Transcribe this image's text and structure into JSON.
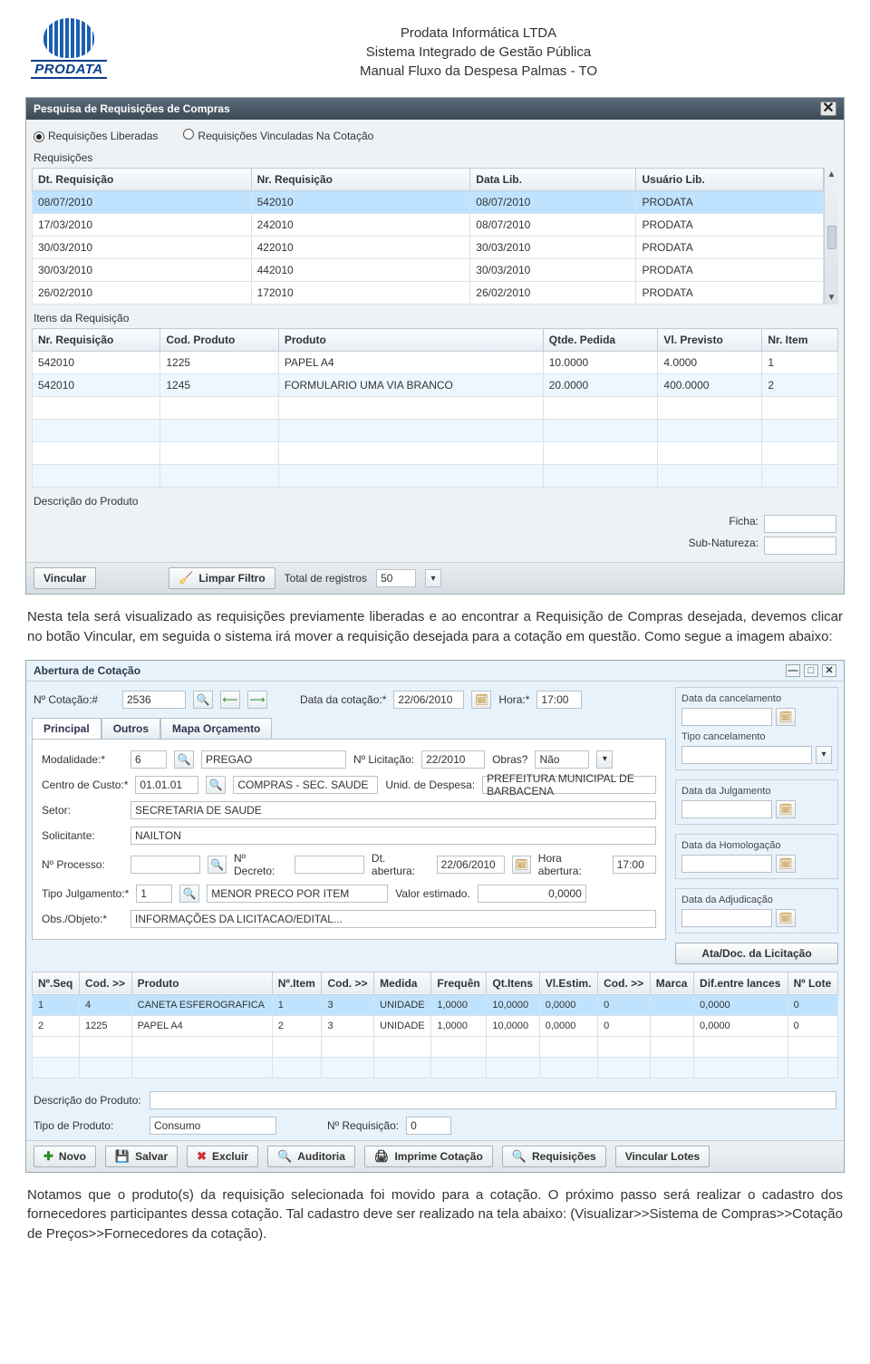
{
  "header": {
    "company": "Prodata Informática LTDA",
    "system": "Sistema Integrado de Gestão Pública",
    "manual": "Manual Fluxo da Despesa Palmas - TO",
    "logo_word": "PRODATA"
  },
  "win1": {
    "title": "Pesquisa de Requisições de Compras",
    "radio_released": "Requisições Liberadas",
    "radio_linked": "Requisições Vinculadas Na Cotação",
    "section_req": "Requisições",
    "cols_req": [
      "Dt. Requisição",
      "Nr. Requisição",
      "Data Lib.",
      "Usuário Lib."
    ],
    "rows_req": [
      [
        "08/07/2010",
        "542010",
        "08/07/2010",
        "PRODATA"
      ],
      [
        "17/03/2010",
        "242010",
        "08/07/2010",
        "PRODATA"
      ],
      [
        "30/03/2010",
        "422010",
        "30/03/2010",
        "PRODATA"
      ],
      [
        "30/03/2010",
        "442010",
        "30/03/2010",
        "PRODATA"
      ],
      [
        "26/02/2010",
        "172010",
        "26/02/2010",
        "PRODATA"
      ]
    ],
    "section_items": "Itens da Requisição",
    "cols_items": [
      "Nr. Requisição",
      "Cod. Produto",
      "Produto",
      "Qtde. Pedida",
      "Vl. Previsto",
      "Nr. Item"
    ],
    "rows_items": [
      [
        "542010",
        "1225",
        "PAPEL A4",
        "10.0000",
        "4.0000",
        "1"
      ],
      [
        "542010",
        "1245",
        "FORMULARIO UMA VIA BRANCO",
        "20.0000",
        "400.0000",
        "2"
      ]
    ],
    "desc_label": "Descrição do Produto",
    "ficha_label": "Ficha:",
    "subnat_label": "Sub-Natureza:",
    "btn_vincular": "Vincular",
    "btn_limpar": "Limpar Filtro",
    "total_label": "Total de registros",
    "total_value": "50"
  },
  "para1": "Nesta tela será visualizado as requisições previamente liberadas e ao encontrar a Requisição de Compras desejada, devemos clicar no botão Vincular, em seguida o sistema irá mover a requisição desejada para a cotação em questão. Como segue a imagem abaixo:",
  "win2": {
    "title": "Abertura de Cotação",
    "no_cotacao_lbl": "Nº Cotação:#",
    "no_cotacao": "2536",
    "data_cotacao_lbl": "Data da cotação:*",
    "data_cotacao": "22/06/2010",
    "hora_lbl": "Hora:*",
    "hora": "17:00",
    "tab_principal": "Principal",
    "tab_outros": "Outros",
    "tab_mapa": "Mapa Orçamento",
    "modalidade_lbl": "Modalidade:*",
    "modalidade_cod": "6",
    "modalidade_txt": "PREGAO",
    "no_licitacao_lbl": "Nº Licitação:",
    "no_licitacao": "22/2010",
    "obras_lbl": "Obras?",
    "obras_val": "Não",
    "centro_lbl": "Centro de Custo:*",
    "centro_cod": "01.01.01",
    "centro_txt": "COMPRAS - SEC. SAUDE",
    "unid_lbl": "Unid. de Despesa:",
    "unid_txt": "PREFEITURA MUNICIPAL DE BARBACENA",
    "setor_lbl": "Setor:",
    "setor_txt": "SECRETARIA DE SAUDE",
    "solicitante_lbl": "Solicitante:",
    "solicitante_txt": "NAILTON",
    "no_processo_lbl": "Nº Processo:",
    "no_decreto_lbl": "Nº Decreto:",
    "dt_abertura_lbl": "Dt. abertura:",
    "dt_abertura": "22/06/2010",
    "hora_abertura_lbl": "Hora abertura:",
    "hora_abertura": "17:00",
    "tipo_julg_lbl": "Tipo Julgamento:*",
    "tipo_julg_cod": "1",
    "tipo_julg_txt": "MENOR PRECO POR ITEM",
    "valor_est_lbl": "Valor estimado.",
    "valor_est": "0,0000",
    "obs_lbl": "Obs./Objeto:*",
    "obs_txt": "INFORMAÇÕES DA LICITACAO/EDITAL...",
    "side": {
      "cancel_lbl": "Data da cancelamento",
      "tipo_cancel_lbl": "Tipo cancelamento",
      "julg_lbl": "Data da Julgamento",
      "homolog_lbl": "Data da Homologação",
      "adjud_lbl": "Data da Adjudicação",
      "ata_btn": "Ata/Doc. da Licitação"
    },
    "grid_cols": [
      "Nº.Seq",
      "Cod. >>",
      "Produto",
      "Nº.Item",
      "Cod. >>",
      "Medida",
      "Frequên",
      "Qt.Itens",
      "Vl.Estim.",
      "Cod. >>",
      "Marca",
      "Dif.entre lances",
      "Nº Lote"
    ],
    "grid_rows": [
      [
        "1",
        "4",
        "CANETA ESFEROGRAFICA",
        "1",
        "3",
        "UNIDADE",
        "1,0000",
        "10,0000",
        "0,0000",
        "0",
        "",
        "0,0000",
        "0"
      ],
      [
        "2",
        "1225",
        "PAPEL A4",
        "2",
        "3",
        "UNIDADE",
        "1,0000",
        "10,0000",
        "0,0000",
        "0",
        "",
        "0,0000",
        "0"
      ]
    ],
    "desc_prod_lbl": "Descrição do Produto:",
    "tipo_prod_lbl": "Tipo de Produto:",
    "tipo_prod_val": "Consumo",
    "no_req_lbl": "Nº Requisição:",
    "no_req_val": "0",
    "btns": {
      "novo": "Novo",
      "salvar": "Salvar",
      "excluir": "Excluir",
      "auditoria": "Auditoria",
      "imprime": "Imprime Cotação",
      "requisicoes": "Requisições",
      "vincular_lotes": "Vincular Lotes"
    }
  },
  "para2": "Notamos que o produto(s) da requisição selecionada foi movido para a cotação. O próximo passo será realizar o cadastro dos fornecedores participantes dessa cotação. Tal cadastro deve ser realizado na tela abaixo: (Visualizar>>Sistema de Compras>>Cotação de Preços>>Fornecedores da cotação)."
}
